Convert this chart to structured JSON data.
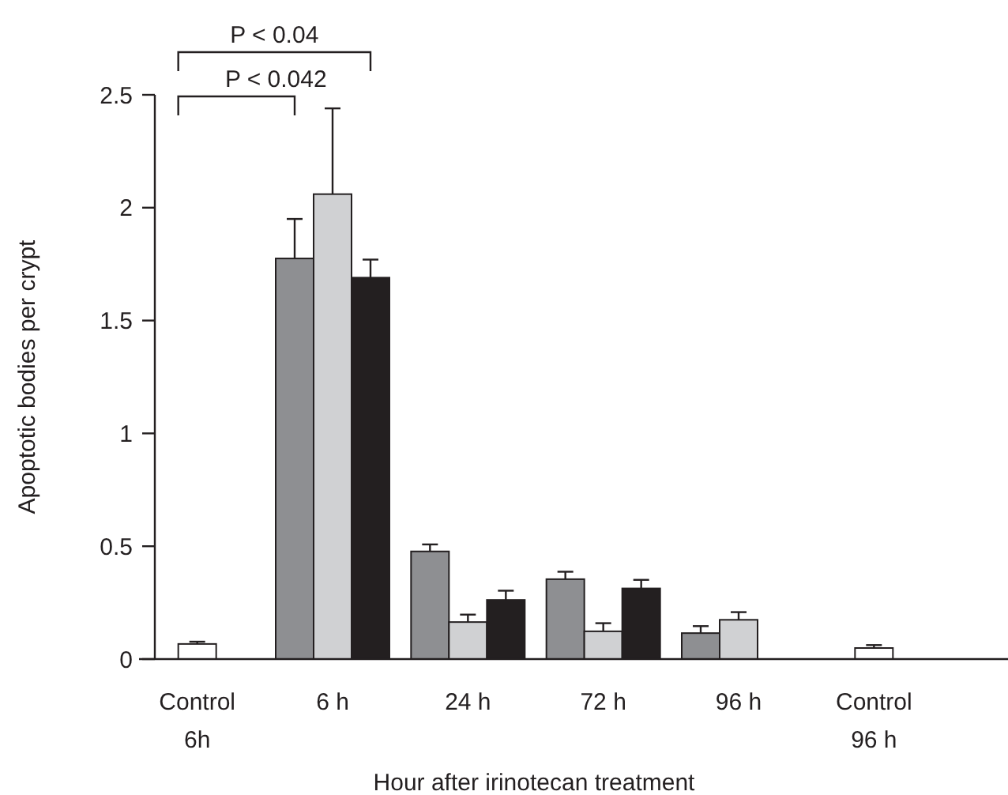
{
  "chart_data": {
    "type": "bar",
    "xlabel": "Hour after irinotecan treatment",
    "ylabel": "Apoptotic bodies per crypt",
    "categories": [
      "Control\n6h",
      "6 h",
      "24 h",
      "72 h",
      "96 h",
      "Control\n96 h"
    ],
    "series": [
      {
        "color": "#8e8f92",
        "values": [
          null,
          1.775,
          0.477,
          0.354,
          0.115,
          null
        ],
        "errors": [
          null,
          [
            1.775,
            1.95
          ],
          [
            0.477,
            0.508
          ],
          [
            0.354,
            0.387
          ],
          [
            0.115,
            0.146
          ],
          null
        ]
      },
      {
        "color": "#d0d1d3",
        "values": [
          null,
          2.06,
          0.164,
          0.123,
          0.174,
          null
        ],
        "errors": [
          null,
          [
            2.06,
            2.44
          ],
          [
            0.164,
            0.197
          ],
          [
            0.123,
            0.159
          ],
          [
            0.174,
            0.208
          ],
          null
        ]
      },
      {
        "color": "#231f20",
        "values": [
          null,
          1.69,
          0.262,
          0.313,
          null,
          null
        ],
        "errors": [
          null,
          [
            1.69,
            1.77
          ],
          [
            0.262,
            0.303
          ],
          [
            0.313,
            0.351
          ],
          null,
          null
        ]
      },
      {
        "color": "#ffffff",
        "values": [
          0.067,
          null,
          null,
          null,
          null,
          0.049
        ],
        "errors": [
          [
            0.067,
            0.077
          ],
          null,
          null,
          null,
          null,
          [
            0.049,
            0.062
          ]
        ]
      }
    ],
    "ylim": [
      0,
      2.5
    ],
    "yticks": [
      0,
      0.5,
      1,
      1.5,
      2,
      2.5
    ],
    "grid": false,
    "annotations": [
      "P < 0.04",
      "P < 0.042"
    ]
  }
}
